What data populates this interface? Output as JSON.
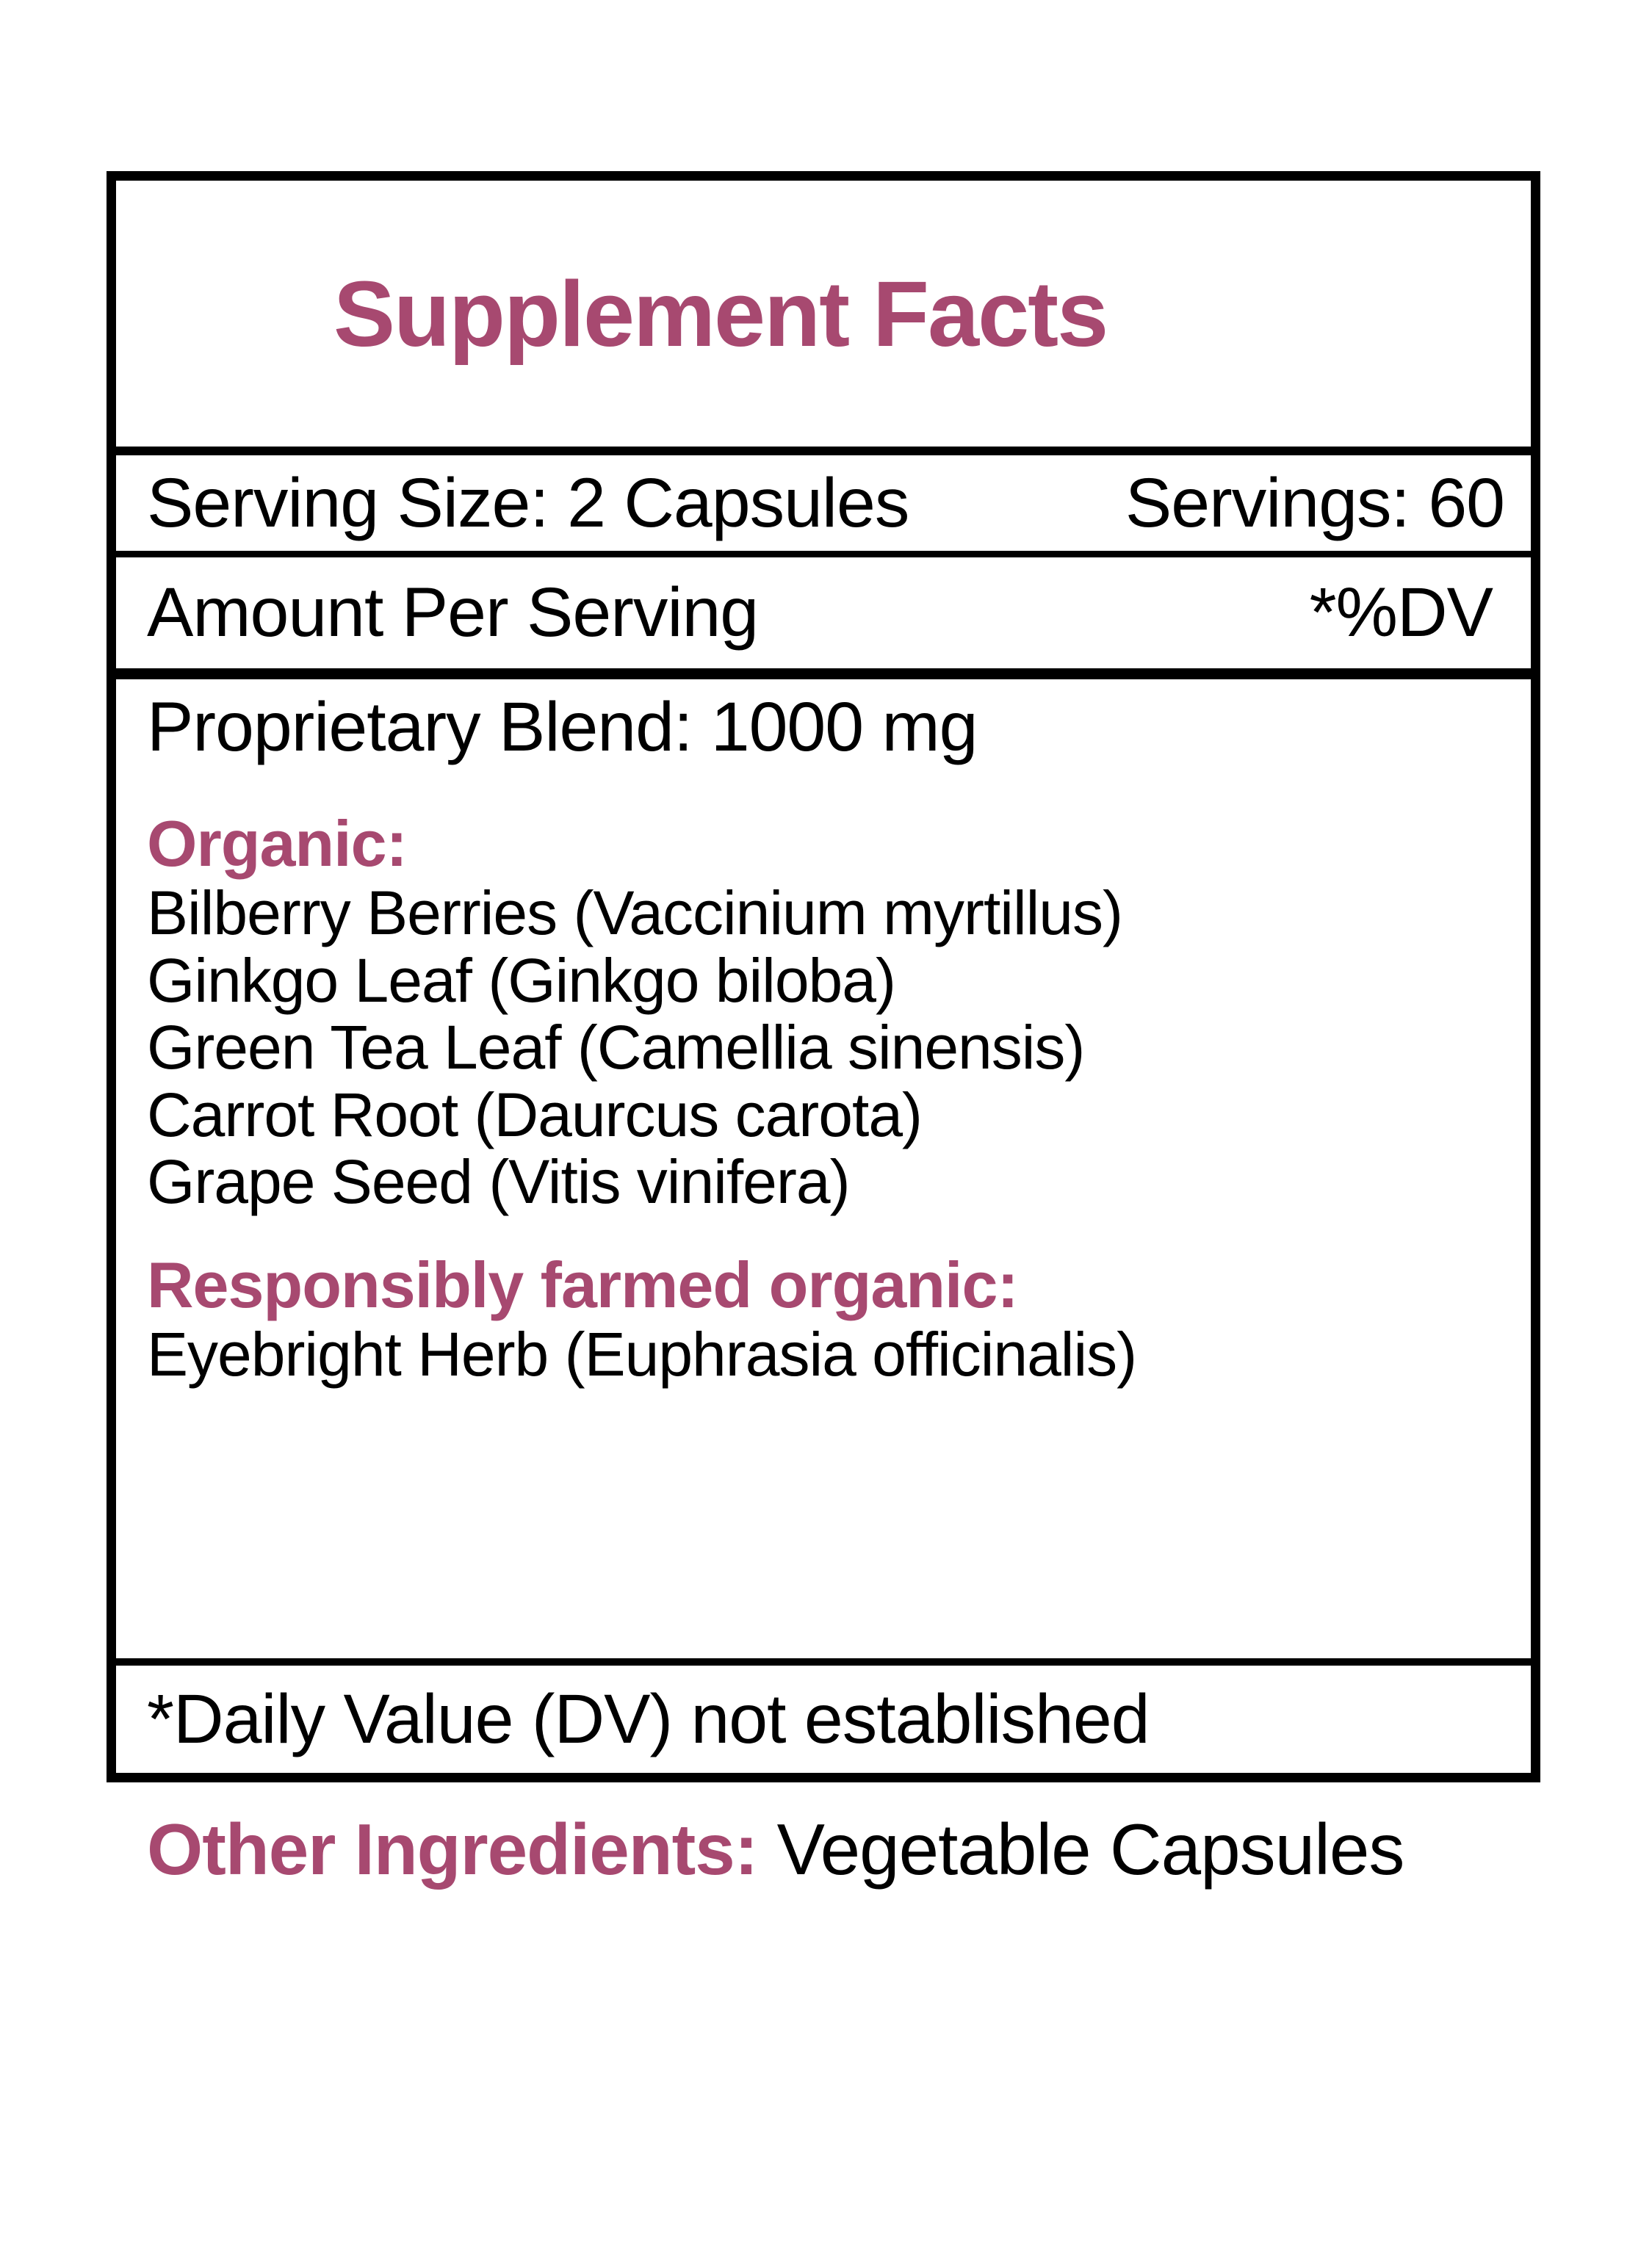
{
  "colors": {
    "accent": "#A74970",
    "text": "#000000",
    "background": "#ffffff",
    "border": "#000000"
  },
  "label": {
    "title": "Supplement Facts",
    "serving_row": {
      "serving_size": "Serving Size: 2 Capsules",
      "servings": "Servings: 60"
    },
    "amount_row": {
      "left": "Amount Per Serving",
      "right": "*%DV"
    },
    "blend": "Proprietary Blend: 1000 mg",
    "sections": [
      {
        "heading": "Organic:",
        "items": [
          "Bilberry Berries (Vaccinium myrtillus)",
          "Ginkgo Leaf (Ginkgo biloba)",
          "Green Tea Leaf (Camellia sinensis)",
          "Carrot Root (Daurcus carota)",
          "Grape Seed (Vitis vinifera)"
        ]
      },
      {
        "heading": "Responsibly farmed organic:",
        "items": [
          "Eyebright Herb (Euphrasia officinalis)"
        ]
      }
    ],
    "footnote": "*Daily Value (DV) not established",
    "other_ingredients": {
      "label": "Other Ingredients:",
      "value": " Vegetable Capsules"
    }
  }
}
